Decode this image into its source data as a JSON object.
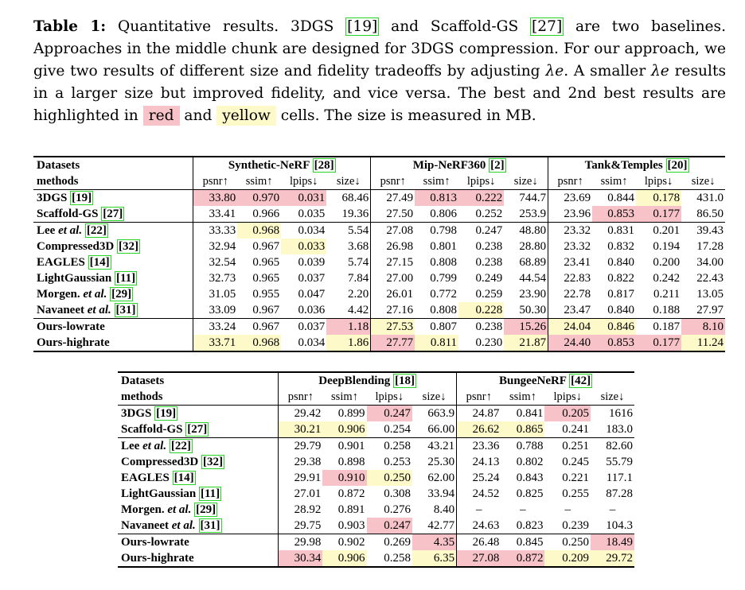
{
  "caption": {
    "label": "Table 1:",
    "p1": " Quantitative results. 3DGS ",
    "r1": "[19]",
    "p2": " and Scaffold-GS ",
    "r2": "[27]",
    "p3": " are two baselines. Approaches in the middle chunk are designed for 3DGS compression. For our approach, we give two results of different size and fidelity tradeoffs by adjusting ",
    "lambda": "λe",
    "p4": ". A smaller ",
    "p5": " results in a larger size but improved fidelity, and vice versa. The best and 2nd best results are highlighted in ",
    "red": "red",
    "p6": " and ",
    "yellow": "yellow",
    "p7": " cells. The size is measured in MB."
  },
  "metrics": [
    "psnr↑",
    "ssim↑",
    "lpips↓",
    "size↓"
  ],
  "table1": {
    "col_label_1": "Datasets",
    "col_label_2": "methods",
    "datasets": [
      {
        "name": "Synthetic-NeRF ",
        "ref": "[28]"
      },
      {
        "name": "Mip-NeRF360 ",
        "ref": "[2]"
      },
      {
        "name": "Tank&Temples ",
        "ref": "[20]"
      }
    ],
    "groups": [
      [
        {
          "name": "3DGS ",
          "ital": "",
          "ref": "[19]",
          "cells": [
            "33.80",
            "0.970",
            "0.031",
            "68.46",
            "27.49",
            "0.813",
            "0.222",
            "744.7",
            "23.69",
            "0.844",
            "0.178",
            "431.0"
          ],
          "hl": [
            "r",
            "r",
            "r",
            "",
            "",
            "r",
            "r",
            "",
            "",
            "",
            "y",
            ""
          ]
        },
        {
          "name": "Scaffold-GS ",
          "ital": "",
          "ref": "[27]",
          "cells": [
            "33.41",
            "0.966",
            "0.035",
            "19.36",
            "27.50",
            "0.806",
            "0.252",
            "253.9",
            "23.96",
            "0.853",
            "0.177",
            "86.50"
          ],
          "hl": [
            "",
            "",
            "",
            "",
            "",
            "",
            "",
            "",
            "",
            "r",
            "r",
            ""
          ]
        }
      ],
      [
        {
          "name": "Lee ",
          "ital": "et al.",
          "ref": "[22]",
          "cells": [
            "33.33",
            "0.968",
            "0.034",
            "5.54",
            "27.08",
            "0.798",
            "0.247",
            "48.80",
            "23.32",
            "0.831",
            "0.201",
            "39.43"
          ],
          "hl": [
            "",
            "y",
            "",
            "",
            "",
            "",
            "",
            "",
            "",
            "",
            "",
            ""
          ]
        },
        {
          "name": "Compressed3D ",
          "ital": "",
          "ref": "[32]",
          "cells": [
            "32.94",
            "0.967",
            "0.033",
            "3.68",
            "26.98",
            "0.801",
            "0.238",
            "28.80",
            "23.32",
            "0.832",
            "0.194",
            "17.28"
          ],
          "hl": [
            "",
            "",
            "y",
            "",
            "",
            "",
            "",
            "",
            "",
            "",
            "",
            ""
          ]
        },
        {
          "name": "EAGLES ",
          "ital": "",
          "ref": "[14]",
          "cells": [
            "32.54",
            "0.965",
            "0.039",
            "5.74",
            "27.15",
            "0.808",
            "0.238",
            "68.89",
            "23.41",
            "0.840",
            "0.200",
            "34.00"
          ],
          "hl": [
            "",
            "",
            "",
            "",
            "",
            "",
            "",
            "",
            "",
            "",
            "",
            ""
          ]
        },
        {
          "name": "LightGaussian ",
          "ital": "",
          "ref": "[11]",
          "cells": [
            "32.73",
            "0.965",
            "0.037",
            "7.84",
            "27.00",
            "0.799",
            "0.249",
            "44.54",
            "22.83",
            "0.822",
            "0.242",
            "22.43"
          ],
          "hl": [
            "",
            "",
            "",
            "",
            "",
            "",
            "",
            "",
            "",
            "",
            "",
            ""
          ]
        },
        {
          "name": "Morgen. ",
          "ital": "et al.",
          "ref": "[29]",
          "cells": [
            "31.05",
            "0.955",
            "0.047",
            "2.20",
            "26.01",
            "0.772",
            "0.259",
            "23.90",
            "22.78",
            "0.817",
            "0.211",
            "13.05"
          ],
          "hl": [
            "",
            "",
            "",
            "",
            "",
            "",
            "",
            "",
            "",
            "",
            "",
            ""
          ]
        },
        {
          "name": "Navaneet ",
          "ital": "et al.",
          "ref": "[31]",
          "cells": [
            "33.09",
            "0.967",
            "0.036",
            "4.42",
            "27.16",
            "0.808",
            "0.228",
            "50.30",
            "23.47",
            "0.840",
            "0.188",
            "27.97"
          ],
          "hl": [
            "",
            "",
            "",
            "",
            "",
            "",
            "y",
            "",
            "",
            "",
            "",
            ""
          ]
        }
      ],
      [
        {
          "name": "Ours-lowrate",
          "ital": "",
          "ref": "",
          "cells": [
            "33.24",
            "0.967",
            "0.037",
            "1.18",
            "27.53",
            "0.807",
            "0.238",
            "15.26",
            "24.04",
            "0.846",
            "0.187",
            "8.10"
          ],
          "hl": [
            "",
            "",
            "",
            "r",
            "y",
            "",
            "",
            "r",
            "y",
            "y",
            "",
            "r"
          ]
        },
        {
          "name": "Ours-highrate",
          "ital": "",
          "ref": "",
          "cells": [
            "33.71",
            "0.968",
            "0.034",
            "1.86",
            "27.77",
            "0.811",
            "0.230",
            "21.87",
            "24.40",
            "0.853",
            "0.177",
            "11.24"
          ],
          "hl": [
            "y",
            "y",
            "",
            "y",
            "r",
            "y",
            "",
            "y",
            "r",
            "r",
            "r",
            "y"
          ]
        }
      ]
    ]
  },
  "table2": {
    "col_label_1": "Datasets",
    "col_label_2": "methods",
    "datasets": [
      {
        "name": "DeepBlending ",
        "ref": "[18]"
      },
      {
        "name": "BungeeNeRF ",
        "ref": "[42]"
      }
    ],
    "groups": [
      [
        {
          "name": "3DGS ",
          "ital": "",
          "ref": "[19]",
          "cells": [
            "29.42",
            "0.899",
            "0.247",
            "663.9",
            "24.87",
            "0.841",
            "0.205",
            "1616"
          ],
          "hl": [
            "",
            "",
            "r",
            "",
            "",
            "",
            "r",
            ""
          ]
        },
        {
          "name": "Scaffold-GS ",
          "ital": "",
          "ref": "[27]",
          "cells": [
            "30.21",
            "0.906",
            "0.254",
            "66.00",
            "26.62",
            "0.865",
            "0.241",
            "183.0"
          ],
          "hl": [
            "y",
            "y",
            "",
            "",
            "y",
            "y",
            "",
            ""
          ]
        }
      ],
      [
        {
          "name": "Lee ",
          "ital": "et al.",
          "ref": "[22]",
          "cells": [
            "29.79",
            "0.901",
            "0.258",
            "43.21",
            "23.36",
            "0.788",
            "0.251",
            "82.60"
          ],
          "hl": [
            "",
            "",
            "",
            "",
            "",
            "",
            "",
            ""
          ]
        },
        {
          "name": "Compressed3D ",
          "ital": "",
          "ref": "[32]",
          "cells": [
            "29.38",
            "0.898",
            "0.253",
            "25.30",
            "24.13",
            "0.802",
            "0.245",
            "55.79"
          ],
          "hl": [
            "",
            "",
            "",
            "",
            "",
            "",
            "",
            ""
          ]
        },
        {
          "name": "EAGLES ",
          "ital": "",
          "ref": "[14]",
          "cells": [
            "29.91",
            "0.910",
            "0.250",
            "62.00",
            "25.24",
            "0.843",
            "0.221",
            "117.1"
          ],
          "hl": [
            "",
            "r",
            "y",
            "",
            "",
            "",
            "",
            ""
          ]
        },
        {
          "name": "LightGaussian ",
          "ital": "",
          "ref": "[11]",
          "cells": [
            "27.01",
            "0.872",
            "0.308",
            "33.94",
            "24.52",
            "0.825",
            "0.255",
            "87.28"
          ],
          "hl": [
            "",
            "",
            "",
            "",
            "",
            "",
            "",
            ""
          ]
        },
        {
          "name": "Morgen. ",
          "ital": "et al.",
          "ref": "[29]",
          "cells": [
            "28.92",
            "0.891",
            "0.276",
            "8.40",
            "–",
            "–",
            "–",
            "–"
          ],
          "hl": [
            "",
            "",
            "",
            "",
            "",
            "",
            "",
            ""
          ]
        },
        {
          "name": "Navaneet ",
          "ital": "et al.",
          "ref": "[31]",
          "cells": [
            "29.75",
            "0.903",
            "0.247",
            "42.77",
            "24.63",
            "0.823",
            "0.239",
            "104.3"
          ],
          "hl": [
            "",
            "",
            "r",
            "",
            "",
            "",
            "",
            ""
          ]
        }
      ],
      [
        {
          "name": "Ours-lowrate",
          "ital": "",
          "ref": "",
          "cells": [
            "29.98",
            "0.902",
            "0.269",
            "4.35",
            "26.48",
            "0.845",
            "0.250",
            "18.49"
          ],
          "hl": [
            "",
            "",
            "",
            "r",
            "",
            "",
            "",
            "r"
          ]
        },
        {
          "name": "Ours-highrate",
          "ital": "",
          "ref": "",
          "cells": [
            "30.34",
            "0.906",
            "0.258",
            "6.35",
            "27.08",
            "0.872",
            "0.209",
            "29.72"
          ],
          "hl": [
            "r",
            "y",
            "",
            "y",
            "r",
            "r",
            "y",
            "y"
          ]
        }
      ]
    ]
  }
}
